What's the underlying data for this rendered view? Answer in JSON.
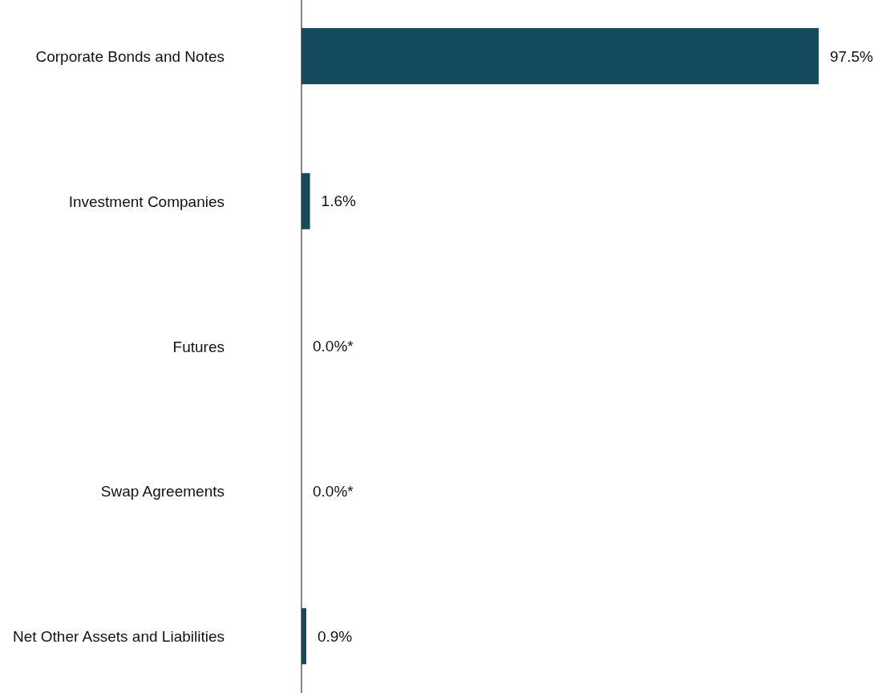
{
  "chart_data": {
    "type": "bar",
    "orientation": "horizontal",
    "categories": [
      "Corporate Bonds and Notes",
      "Investment Companies",
      "Futures",
      "Swap Agreements",
      "Net Other Assets and Liabilities"
    ],
    "values": [
      97.5,
      1.6,
      0.0,
      0.0,
      0.9
    ],
    "value_labels": [
      "97.5%",
      "1.6%",
      "0.0%*",
      "0.0%*",
      "0.9%"
    ],
    "color": "#134a5e",
    "grid": false,
    "legend": false
  }
}
